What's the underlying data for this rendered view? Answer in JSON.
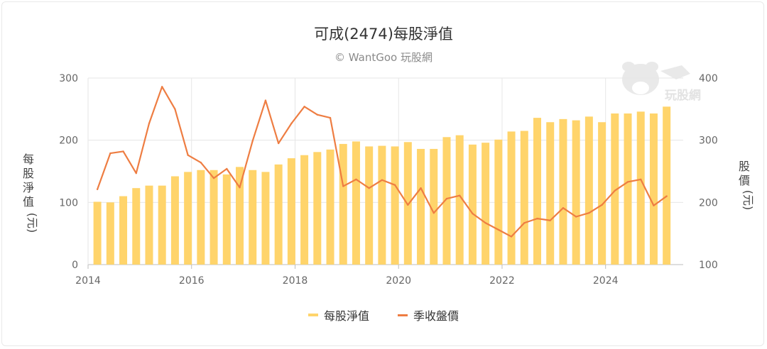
{
  "chart_data": {
    "type": "bar+line",
    "title": "可成(2474)每股淨值",
    "subtitle": "© WantGoo 玩股網",
    "watermark": "玩股網",
    "y_left": {
      "label": "每股淨值 (元)",
      "ticks": [
        "0",
        "100",
        "200",
        "300"
      ],
      "ylim": [
        0,
        300
      ]
    },
    "y_right": {
      "label": "股價 (元)",
      "ticks": [
        "100",
        "200",
        "300",
        "400"
      ],
      "ylim": [
        100,
        400
      ]
    },
    "x_ticks": [
      "2014",
      "2016",
      "2018",
      "2020",
      "2022",
      "2024"
    ],
    "x_tick_values": [
      2014,
      2016,
      2018,
      2020,
      2022,
      2024
    ],
    "x_range": [
      2014,
      2025.5
    ],
    "grid": true,
    "colors": {
      "bar": "#FFD46B",
      "line": "#EE7D42",
      "grid": "#e6e6e6"
    },
    "series": [
      {
        "name": "每股淨值",
        "kind": "bar",
        "axis": "left",
        "x": [
          2014.125,
          2014.375,
          2014.625,
          2014.875,
          2015.125,
          2015.375,
          2015.625,
          2015.875,
          2016.125,
          2016.375,
          2016.625,
          2016.875,
          2017.125,
          2017.375,
          2017.625,
          2017.875,
          2018.125,
          2018.375,
          2018.625,
          2018.875,
          2019.125,
          2019.375,
          2019.625,
          2019.875,
          2020.125,
          2020.375,
          2020.625,
          2020.875,
          2021.125,
          2021.375,
          2021.625,
          2021.875,
          2022.125,
          2022.375,
          2022.625,
          2022.875,
          2023.125,
          2023.375,
          2023.625,
          2023.875,
          2024.125,
          2024.375,
          2024.625,
          2024.875,
          2025.125
        ],
        "values": [
          101,
          100,
          110,
          123,
          127,
          127,
          142,
          149,
          152,
          152,
          145,
          157,
          152,
          149,
          161,
          171,
          176,
          181,
          185,
          194,
          198,
          190,
          191,
          190,
          197,
          186,
          186,
          205,
          208,
          193,
          196,
          201,
          214,
          215,
          236,
          229,
          234,
          232,
          238,
          229,
          243,
          243,
          246,
          243,
          254
        ]
      },
      {
        "name": "季收盤價",
        "kind": "line",
        "axis": "right",
        "x": [
          2014.125,
          2014.375,
          2014.625,
          2014.875,
          2015.125,
          2015.375,
          2015.625,
          2015.875,
          2016.125,
          2016.375,
          2016.625,
          2016.875,
          2017.125,
          2017.375,
          2017.625,
          2017.875,
          2018.125,
          2018.375,
          2018.625,
          2018.875,
          2019.125,
          2019.375,
          2019.625,
          2019.875,
          2020.125,
          2020.375,
          2020.625,
          2020.875,
          2021.125,
          2021.375,
          2021.625,
          2021.875,
          2022.125,
          2022.375,
          2022.625,
          2022.875,
          2023.125,
          2023.375,
          2023.625,
          2023.875,
          2024.125,
          2024.375,
          2024.625,
          2024.875,
          2025.125
        ],
        "values": [
          221,
          279,
          282,
          247,
          327,
          386,
          350,
          276,
          264,
          239,
          254,
          224,
          299,
          364,
          295,
          327,
          354,
          341,
          336,
          226,
          237,
          223,
          236,
          228,
          196,
          223,
          183,
          206,
          211,
          182,
          167,
          156,
          145,
          167,
          174,
          171,
          191,
          177,
          183,
          196,
          219,
          233,
          237,
          195,
          210
        ]
      }
    ],
    "legend": [
      "每股淨值",
      "季收盤價"
    ],
    "legend_position": "bottom"
  }
}
